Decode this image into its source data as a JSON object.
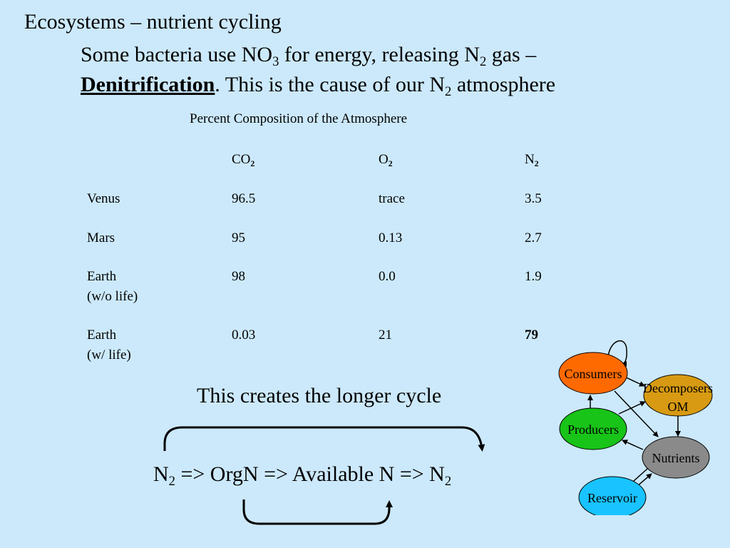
{
  "slide": {
    "title": "Ecosystems – nutrient cycling",
    "line1": {
      "a": "Some bacteria use NO",
      "sub1": "3",
      "b": " for energy, releasing N",
      "sub2": "2",
      "c": " gas –"
    },
    "line2": {
      "bold": "Denitrification",
      "a": ".  This is the cause of our N",
      "sub": "2",
      "b": " atmosphere"
    }
  },
  "table": {
    "title": "Percent Composition of the Atmosphere",
    "headers": [
      {
        "base": "CO",
        "sub": "2"
      },
      {
        "base": "O",
        "sub": "2"
      },
      {
        "base": "N",
        "sub": "2"
      }
    ],
    "rows": [
      {
        "label": "Venus",
        "label2": "",
        "co2": "96.5",
        "o2": "trace",
        "n2": "3.5"
      },
      {
        "label": "Mars",
        "label2": "",
        "co2": "95",
        "o2": "0.13",
        "n2": "2.7"
      },
      {
        "label": "Earth",
        "label2": "(w/o life)",
        "co2": "98",
        "o2": "0.0",
        "n2": "1.9"
      },
      {
        "label": "Earth",
        "label2": "(w/ life)",
        "co2": "0.03",
        "o2": "21",
        "n2": "79"
      }
    ]
  },
  "cycle": {
    "caption": "This creates the longer cycle",
    "formula": {
      "p1": "N",
      "s1": "2",
      "p2": " => OrgN => Available N => N",
      "s2": "2"
    }
  },
  "diagram": {
    "nodes": {
      "consumers": "Consumers",
      "decomposers": "Decomposers",
      "om": "OM",
      "producers": "Producers",
      "nutrients": "Nutrients",
      "reservoir": "Reservoir"
    },
    "colors": {
      "consumers": "#ff6a00",
      "decomposers": "#d79a12",
      "producers": "#18c418",
      "nutrients": "#8a8a8a",
      "reservoir": "#19c3ff"
    }
  },
  "colors": {
    "background": "#cce9fb"
  }
}
